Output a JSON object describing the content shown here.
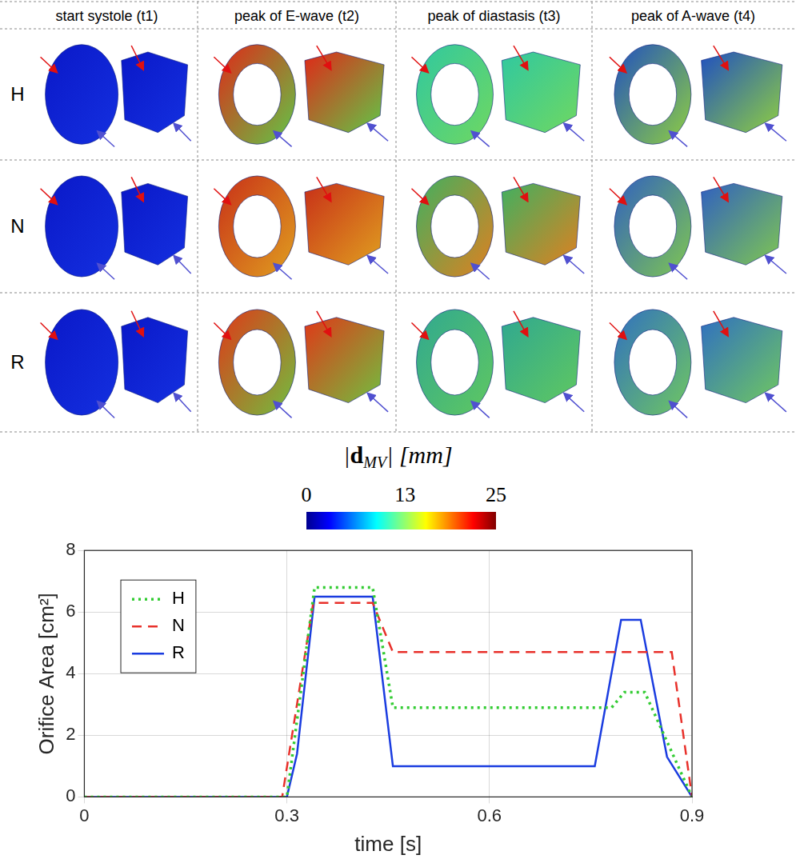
{
  "figure": {
    "columns": [
      "start systole (t1)",
      "peak of E-wave (t2)",
      "peak of diastasis (t3)",
      "peak of A-wave (t4)"
    ],
    "rows": [
      "H",
      "N",
      "R"
    ],
    "colorbar": {
      "prefix": "|",
      "symbol": "d",
      "subscript": "MV",
      "suffix": "| [mm]",
      "range": [
        0,
        25
      ],
      "ticks": [
        0,
        13,
        25
      ]
    }
  },
  "chart_data": {
    "type": "line",
    "x_label": "time [s]",
    "y_label": "Orifice Area [cm²]",
    "xlim": [
      0,
      0.9
    ],
    "xticks": [
      0,
      0.3,
      0.6,
      0.9
    ],
    "ylim": [
      0,
      8
    ],
    "yticks": [
      0,
      2,
      4,
      6,
      8
    ],
    "grid": true,
    "legend": "upper left",
    "series": [
      {
        "name": "H",
        "color": "#33cc33",
        "line_style": "dotted",
        "x": [
          0,
          0.3,
          0.341,
          0.427,
          0.457,
          0.781,
          0.8,
          0.83,
          0.9
        ],
        "values": [
          0,
          0,
          6.8,
          6.8,
          2.9,
          2.9,
          3.4,
          3.4,
          0
        ]
      },
      {
        "name": "N",
        "color": "#e8302a",
        "line_style": "dashed",
        "x": [
          0,
          0.293,
          0.339,
          0.427,
          0.457,
          0.87,
          0.9
        ],
        "values": [
          0,
          0,
          6.3,
          6.3,
          4.7,
          4.7,
          0
        ]
      },
      {
        "name": "R",
        "color": "#1a3ce0",
        "line_style": "solid",
        "x": [
          0,
          0.3,
          0.315,
          0.341,
          0.427,
          0.457,
          0.756,
          0.795,
          0.824,
          0.863,
          0.9
        ],
        "values": [
          0,
          0,
          1.4,
          6.5,
          6.5,
          1.0,
          1.0,
          5.75,
          5.75,
          1.3,
          0
        ]
      }
    ]
  }
}
